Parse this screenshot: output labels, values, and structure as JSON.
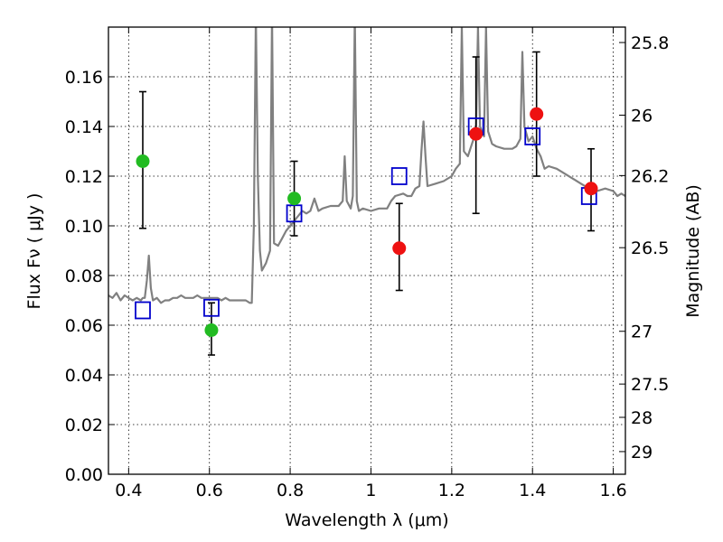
{
  "chart_data": {
    "type": "scatter",
    "xlabel": "Wavelength  λ (μm)",
    "ylabel": "Flux  Fν  ( μJy )",
    "y2label": "Magnitude (AB)",
    "xlim": [
      0.35,
      1.63
    ],
    "ylim": [
      0.0,
      0.18
    ],
    "grid": true,
    "xticks": [
      {
        "value": 0.4,
        "label": "0.4"
      },
      {
        "value": 0.6,
        "label": "0.6"
      },
      {
        "value": 0.8,
        "label": "0.8"
      },
      {
        "value": 1.0,
        "label": "1"
      },
      {
        "value": 1.2,
        "label": "1.2"
      },
      {
        "value": 1.4,
        "label": "1.4"
      },
      {
        "value": 1.6,
        "label": "1.6"
      }
    ],
    "yticks": [
      {
        "value": 0.0,
        "label": "0.00"
      },
      {
        "value": 0.02,
        "label": "0.02"
      },
      {
        "value": 0.04,
        "label": "0.04"
      },
      {
        "value": 0.06,
        "label": "0.06"
      },
      {
        "value": 0.08,
        "label": "0.08"
      },
      {
        "value": 0.1,
        "label": "0.10"
      },
      {
        "value": 0.12,
        "label": "0.12"
      },
      {
        "value": 0.14,
        "label": "0.14"
      },
      {
        "value": 0.16,
        "label": "0.16"
      }
    ],
    "y2ticks": [
      {
        "value": 25.8,
        "label": "25.8"
      },
      {
        "value": 26.0,
        "label": "26"
      },
      {
        "value": 26.2,
        "label": "26.2"
      },
      {
        "value": 26.5,
        "label": "26.5"
      },
      {
        "value": 27.0,
        "label": "27"
      },
      {
        "value": 27.5,
        "label": "27.5"
      },
      {
        "value": 28.0,
        "label": "28"
      },
      {
        "value": 29.0,
        "label": "29"
      }
    ],
    "series": [
      {
        "kind": "line",
        "color": "#808080",
        "points": [
          [
            0.35,
            0.072
          ],
          [
            0.36,
            0.071
          ],
          [
            0.37,
            0.073
          ],
          [
            0.38,
            0.07
          ],
          [
            0.39,
            0.072
          ],
          [
            0.4,
            0.071
          ],
          [
            0.41,
            0.07
          ],
          [
            0.42,
            0.071
          ],
          [
            0.43,
            0.07
          ],
          [
            0.435,
            0.071
          ],
          [
            0.44,
            0.071
          ],
          [
            0.445,
            0.078
          ],
          [
            0.45,
            0.088
          ],
          [
            0.455,
            0.075
          ],
          [
            0.46,
            0.07
          ],
          [
            0.47,
            0.071
          ],
          [
            0.48,
            0.069
          ],
          [
            0.49,
            0.07
          ],
          [
            0.5,
            0.07
          ],
          [
            0.51,
            0.071
          ],
          [
            0.52,
            0.071
          ],
          [
            0.53,
            0.072
          ],
          [
            0.54,
            0.071
          ],
          [
            0.55,
            0.071
          ],
          [
            0.56,
            0.071
          ],
          [
            0.57,
            0.072
          ],
          [
            0.58,
            0.071
          ],
          [
            0.59,
            0.071
          ],
          [
            0.6,
            0.071
          ],
          [
            0.61,
            0.071
          ],
          [
            0.62,
            0.071
          ],
          [
            0.63,
            0.07
          ],
          [
            0.64,
            0.071
          ],
          [
            0.65,
            0.07
          ],
          [
            0.66,
            0.07
          ],
          [
            0.67,
            0.07
          ],
          [
            0.68,
            0.07
          ],
          [
            0.69,
            0.07
          ],
          [
            0.7,
            0.069
          ],
          [
            0.705,
            0.069
          ],
          [
            0.71,
            0.1
          ],
          [
            0.715,
            0.185
          ],
          [
            0.72,
            0.12
          ],
          [
            0.725,
            0.09
          ],
          [
            0.73,
            0.082
          ],
          [
            0.74,
            0.085
          ],
          [
            0.75,
            0.09
          ],
          [
            0.755,
            0.185
          ],
          [
            0.76,
            0.093
          ],
          [
            0.77,
            0.092
          ],
          [
            0.78,
            0.095
          ],
          [
            0.79,
            0.098
          ],
          [
            0.8,
            0.1
          ],
          [
            0.81,
            0.102
          ],
          [
            0.82,
            0.104
          ],
          [
            0.83,
            0.106
          ],
          [
            0.84,
            0.105
          ],
          [
            0.85,
            0.106
          ],
          [
            0.86,
            0.111
          ],
          [
            0.87,
            0.106
          ],
          [
            0.88,
            0.107
          ],
          [
            0.9,
            0.108
          ],
          [
            0.92,
            0.108
          ],
          [
            0.93,
            0.11
          ],
          [
            0.935,
            0.128
          ],
          [
            0.94,
            0.11
          ],
          [
            0.95,
            0.107
          ],
          [
            0.955,
            0.112
          ],
          [
            0.96,
            0.185
          ],
          [
            0.965,
            0.11
          ],
          [
            0.97,
            0.106
          ],
          [
            0.98,
            0.107
          ],
          [
            1.0,
            0.106
          ],
          [
            1.02,
            0.107
          ],
          [
            1.04,
            0.107
          ],
          [
            1.05,
            0.11
          ],
          [
            1.06,
            0.112
          ],
          [
            1.08,
            0.113
          ],
          [
            1.09,
            0.112
          ],
          [
            1.1,
            0.112
          ],
          [
            1.11,
            0.115
          ],
          [
            1.12,
            0.116
          ],
          [
            1.125,
            0.13
          ],
          [
            1.13,
            0.142
          ],
          [
            1.135,
            0.128
          ],
          [
            1.14,
            0.116
          ],
          [
            1.16,
            0.117
          ],
          [
            1.18,
            0.118
          ],
          [
            1.2,
            0.12
          ],
          [
            1.21,
            0.123
          ],
          [
            1.22,
            0.125
          ],
          [
            1.225,
            0.18
          ],
          [
            1.23,
            0.13
          ],
          [
            1.24,
            0.128
          ],
          [
            1.25,
            0.133
          ],
          [
            1.26,
            0.138
          ],
          [
            1.265,
            0.18
          ],
          [
            1.27,
            0.14
          ],
          [
            1.28,
            0.136
          ],
          [
            1.285,
            0.18
          ],
          [
            1.29,
            0.138
          ],
          [
            1.3,
            0.133
          ],
          [
            1.31,
            0.132
          ],
          [
            1.33,
            0.131
          ],
          [
            1.35,
            0.131
          ],
          [
            1.36,
            0.132
          ],
          [
            1.37,
            0.135
          ],
          [
            1.375,
            0.17
          ],
          [
            1.38,
            0.14
          ],
          [
            1.39,
            0.134
          ],
          [
            1.4,
            0.136
          ],
          [
            1.41,
            0.131
          ],
          [
            1.42,
            0.128
          ],
          [
            1.43,
            0.123
          ],
          [
            1.44,
            0.124
          ],
          [
            1.46,
            0.123
          ],
          [
            1.48,
            0.121
          ],
          [
            1.5,
            0.119
          ],
          [
            1.52,
            0.117
          ],
          [
            1.54,
            0.115
          ],
          [
            1.56,
            0.114
          ],
          [
            1.58,
            0.115
          ],
          [
            1.6,
            0.114
          ],
          [
            1.61,
            0.112
          ],
          [
            1.62,
            0.113
          ],
          [
            1.63,
            0.112
          ]
        ]
      },
      {
        "kind": "errorbar",
        "color": "#000000",
        "points": [
          {
            "x": 0.435,
            "low": 0.099,
            "high": 0.154
          },
          {
            "x": 0.605,
            "low": 0.048,
            "high": 0.069
          },
          {
            "x": 0.81,
            "low": 0.096,
            "high": 0.126
          },
          {
            "x": 1.07,
            "low": 0.074,
            "high": 0.109
          },
          {
            "x": 1.26,
            "low": 0.105,
            "high": 0.168
          },
          {
            "x": 1.41,
            "low": 0.12,
            "high": 0.17
          },
          {
            "x": 1.545,
            "low": 0.098,
            "high": 0.131
          }
        ]
      },
      {
        "kind": "marker-square",
        "color": "#0000cc",
        "points": [
          [
            0.435,
            0.066
          ],
          [
            0.605,
            0.067
          ],
          [
            0.81,
            0.105
          ],
          [
            1.07,
            0.12
          ],
          [
            1.26,
            0.14
          ],
          [
            1.4,
            0.136
          ],
          [
            1.54,
            0.112
          ]
        ]
      },
      {
        "kind": "marker-circle",
        "color": "#22bb22",
        "points": [
          [
            0.435,
            0.126
          ],
          [
            0.605,
            0.058
          ],
          [
            0.81,
            0.111
          ]
        ]
      },
      {
        "kind": "marker-circle",
        "color": "#ee1111",
        "points": [
          [
            1.07,
            0.091
          ],
          [
            1.26,
            0.137
          ],
          [
            1.41,
            0.145
          ],
          [
            1.545,
            0.115
          ]
        ]
      }
    ]
  }
}
